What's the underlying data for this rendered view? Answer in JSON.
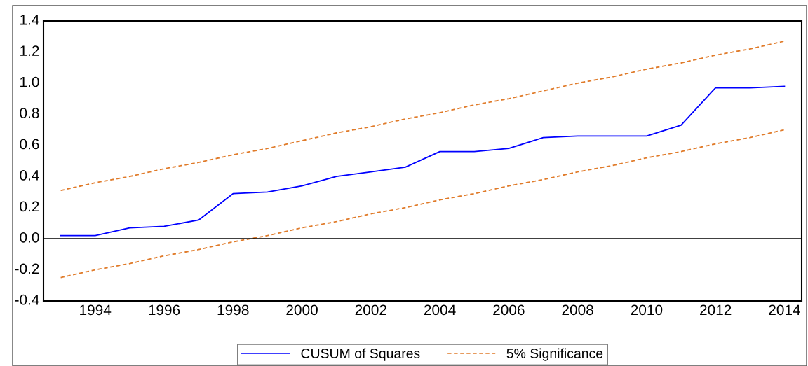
{
  "chart_data": {
    "type": "line",
    "x": [
      1993,
      1994,
      1995,
      1996,
      1997,
      1998,
      1999,
      2000,
      2001,
      2002,
      2003,
      2004,
      2005,
      2006,
      2007,
      2008,
      2009,
      2010,
      2011,
      2012,
      2013,
      2014
    ],
    "series": [
      {
        "name": "CUSUM of Squares",
        "color": "#0000ff",
        "line_style": "solid",
        "values": [
          0.02,
          0.02,
          0.07,
          0.08,
          0.12,
          0.29,
          0.3,
          0.34,
          0.4,
          0.43,
          0.46,
          0.56,
          0.56,
          0.58,
          0.65,
          0.66,
          0.66,
          0.66,
          0.73,
          0.97,
          0.97,
          0.98
        ]
      },
      {
        "name": "5% Significance",
        "color": "#e07b2a",
        "line_style": "dashed",
        "values": [
          0.31,
          0.36,
          0.4,
          0.45,
          0.49,
          0.54,
          0.58,
          0.63,
          0.68,
          0.72,
          0.77,
          0.81,
          0.86,
          0.9,
          0.95,
          1.0,
          1.04,
          1.09,
          1.13,
          1.18,
          1.22,
          1.27
        ]
      },
      {
        "color": "#e07b2a",
        "line_style": "dashed",
        "values": [
          -0.25,
          -0.2,
          -0.16,
          -0.11,
          -0.07,
          -0.02,
          0.02,
          0.07,
          0.11,
          0.16,
          0.2,
          0.25,
          0.29,
          0.34,
          0.38,
          0.43,
          0.47,
          0.52,
          0.56,
          0.61,
          0.65,
          0.7
        ]
      }
    ],
    "xlim": [
      1992.5,
      2014.5
    ],
    "xticks": [
      1994,
      1996,
      1998,
      2000,
      2002,
      2004,
      2006,
      2008,
      2010,
      2012,
      2014
    ],
    "ylim": [
      -0.4,
      1.4
    ],
    "yticks": [
      {
        "value": -0.4,
        "label": "-0.4"
      },
      {
        "value": -0.2,
        "label": "-0.2"
      },
      {
        "value": 0,
        "label": "0.0"
      },
      {
        "value": 0.2,
        "label": "0.2"
      },
      {
        "value": 0.4,
        "label": "0.4"
      },
      {
        "value": 0.6,
        "label": "0.6"
      },
      {
        "value": 0.8,
        "label": "0.8"
      },
      {
        "value": 1.0,
        "label": "1.0"
      },
      {
        "value": 1.2,
        "label": "1.2"
      },
      {
        "value": 1.4,
        "label": "1.4"
      }
    ],
    "ref_lines": [
      {
        "axis": "y",
        "value": 0,
        "color": "#000000",
        "line_style": "solid"
      }
    ],
    "grid": false,
    "legend": "bottom",
    "marker": "none"
  }
}
